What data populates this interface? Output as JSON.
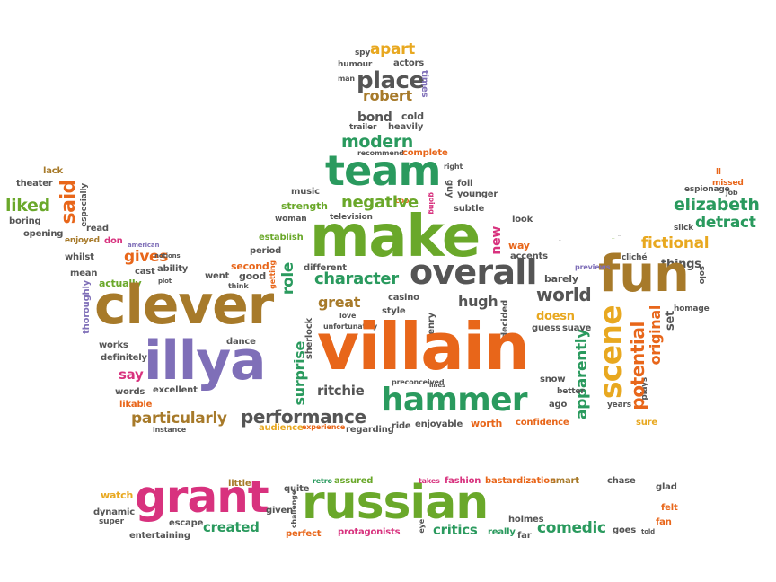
{
  "words": [
    {
      "text": "villain",
      "color": "#e8661a"
    },
    {
      "text": "clever",
      "color": "#a77a2a"
    },
    {
      "text": "make",
      "color": "#6aa82a"
    },
    {
      "text": "illya",
      "color": "#7f6fb8"
    },
    {
      "text": "fun",
      "color": "#a77a2a"
    },
    {
      "text": "action",
      "color": "#6aa82a"
    },
    {
      "text": "russian",
      "color": "#6aa82a"
    },
    {
      "text": "grant",
      "color": "#d8327e"
    },
    {
      "text": "team",
      "color": "#2a9a5e"
    },
    {
      "text": "hammer",
      "color": "#2a9a5e"
    },
    {
      "text": "overall",
      "color": "#555555"
    },
    {
      "text": "scene",
      "color": "#e8a820"
    },
    {
      "text": "performance",
      "color": "#555555"
    },
    {
      "text": "character",
      "color": "#2a9a5e"
    },
    {
      "text": "modern",
      "color": "#2a9a5e"
    },
    {
      "text": "negative",
      "color": "#6aa82a"
    },
    {
      "text": "place",
      "color": "#555555"
    },
    {
      "text": "created",
      "color": "#2a9a5e"
    },
    {
      "text": "elizabeth",
      "color": "#2a9a5e"
    },
    {
      "text": "particularly",
      "color": "#a77a2a"
    },
    {
      "text": "potential",
      "color": "#e8661a"
    },
    {
      "text": "comedic",
      "color": "#2a9a5e"
    },
    {
      "text": "critics",
      "color": "#2a9a5e"
    },
    {
      "text": "apparently",
      "color": "#2a9a5e"
    },
    {
      "text": "robert",
      "color": "#a77a2a"
    },
    {
      "text": "detract",
      "color": "#2a9a5e"
    },
    {
      "text": "fictional",
      "color": "#e8a820"
    },
    {
      "text": "world",
      "color": "#555555"
    },
    {
      "text": "gives",
      "color": "#e8661a"
    },
    {
      "text": "ritchie",
      "color": "#555555"
    },
    {
      "text": "surprise",
      "color": "#2a9a5e"
    },
    {
      "text": "hugh",
      "color": "#555555"
    },
    {
      "text": "great",
      "color": "#a77a2a"
    },
    {
      "text": "said",
      "color": "#e8661a"
    },
    {
      "text": "liked",
      "color": "#6aa82a"
    },
    {
      "text": "apart",
      "color": "#e8a820"
    },
    {
      "text": "role",
      "color": "#2a9a5e"
    },
    {
      "text": "original",
      "color": "#e8661a"
    },
    {
      "text": "doesn",
      "color": "#e8a820"
    },
    {
      "text": "say",
      "color": "#d8327e"
    },
    {
      "text": "protagonists",
      "color": "#d8327e"
    },
    {
      "text": "new",
      "color": "#d8327e"
    },
    {
      "text": "things",
      "color": "#555555"
    },
    {
      "text": "bond",
      "color": "#555555"
    },
    {
      "text": "watch",
      "color": "#e8a820"
    },
    {
      "text": "entertaining",
      "color": "#555555"
    },
    {
      "text": "dynamic",
      "color": "#555555"
    },
    {
      "text": "escape",
      "color": "#555555"
    },
    {
      "text": "given",
      "color": "#555555"
    },
    {
      "text": "little",
      "color": "#a77a2a"
    },
    {
      "text": "quite",
      "color": "#555555"
    },
    {
      "text": "perfect",
      "color": "#e8661a"
    },
    {
      "text": "retro",
      "color": "#2a9a5e"
    },
    {
      "text": "assured",
      "color": "#6aa82a"
    },
    {
      "text": "takes",
      "color": "#d8327e"
    },
    {
      "text": "fashion",
      "color": "#d8327e"
    },
    {
      "text": "bastardization",
      "color": "#e8661a"
    },
    {
      "text": "smart",
      "color": "#a77a2a"
    },
    {
      "text": "chase",
      "color": "#555555"
    },
    {
      "text": "glad",
      "color": "#555555"
    },
    {
      "text": "felt",
      "color": "#e8661a"
    },
    {
      "text": "fan",
      "color": "#e8661a"
    },
    {
      "text": "holmes",
      "color": "#555555"
    },
    {
      "text": "really",
      "color": "#2a9a5e"
    },
    {
      "text": "far",
      "color": "#555555"
    },
    {
      "text": "goes",
      "color": "#555555"
    },
    {
      "text": "told",
      "color": "#555555"
    },
    {
      "text": "eye",
      "color": "#555555"
    },
    {
      "text": "super",
      "color": "#555555"
    },
    {
      "text": "challenge",
      "color": "#555555"
    },
    {
      "text": "confidence",
      "color": "#e8661a"
    },
    {
      "text": "worth",
      "color": "#e8661a"
    },
    {
      "text": "enjoyable",
      "color": "#555555"
    },
    {
      "text": "ride",
      "color": "#555555"
    },
    {
      "text": "regarding",
      "color": "#555555"
    },
    {
      "text": "experience",
      "color": "#e8661a"
    },
    {
      "text": "audience",
      "color": "#e8a820"
    },
    {
      "text": "instance",
      "color": "#555555"
    },
    {
      "text": "likable",
      "color": "#e8661a"
    },
    {
      "text": "excellent",
      "color": "#555555"
    },
    {
      "text": "words",
      "color": "#555555"
    },
    {
      "text": "definitely",
      "color": "#555555"
    },
    {
      "text": "works",
      "color": "#555555"
    },
    {
      "text": "thoroughly",
      "color": "#7f6fb8"
    },
    {
      "text": "mean",
      "color": "#555555"
    },
    {
      "text": "actually",
      "color": "#6aa82a"
    },
    {
      "text": "whilst",
      "color": "#555555"
    },
    {
      "text": "opening",
      "color": "#555555"
    },
    {
      "text": "enjoyed",
      "color": "#a77a2a"
    },
    {
      "text": "boring",
      "color": "#555555"
    },
    {
      "text": "theater",
      "color": "#555555"
    },
    {
      "text": "lack",
      "color": "#a77a2a"
    },
    {
      "text": "especially",
      "color": "#555555"
    },
    {
      "text": "read",
      "color": "#555555"
    },
    {
      "text": "don",
      "color": "#d8327e"
    },
    {
      "text": "cast",
      "color": "#555555"
    },
    {
      "text": "plot",
      "color": "#555555"
    },
    {
      "text": "ability",
      "color": "#555555"
    },
    {
      "text": "american",
      "color": "#7f6fb8"
    },
    {
      "text": "notions",
      "color": "#555555"
    },
    {
      "text": "shows",
      "color": "#555555"
    },
    {
      "text": "went",
      "color": "#555555"
    },
    {
      "text": "think",
      "color": "#555555"
    },
    {
      "text": "good",
      "color": "#555555"
    },
    {
      "text": "second",
      "color": "#e8661a"
    },
    {
      "text": "period",
      "color": "#555555"
    },
    {
      "text": "getting",
      "color": "#e8661a"
    },
    {
      "text": "establish",
      "color": "#6aa82a"
    },
    {
      "text": "woman",
      "color": "#555555"
    },
    {
      "text": "strength",
      "color": "#6aa82a"
    },
    {
      "text": "music",
      "color": "#555555"
    },
    {
      "text": "television",
      "color": "#555555"
    },
    {
      "text": "cool",
      "color": "#e8661a"
    },
    {
      "text": "going",
      "color": "#d8327e"
    },
    {
      "text": "subtle",
      "color": "#555555"
    },
    {
      "text": "younger",
      "color": "#555555"
    },
    {
      "text": "guy",
      "color": "#555555"
    },
    {
      "text": "foil",
      "color": "#555555"
    },
    {
      "text": "right",
      "color": "#555555"
    },
    {
      "text": "complete",
      "color": "#e8661a"
    },
    {
      "text": "recommend",
      "color": "#555555"
    },
    {
      "text": "heavily",
      "color": "#555555"
    },
    {
      "text": "trailer",
      "color": "#555555"
    },
    {
      "text": "cold",
      "color": "#555555"
    },
    {
      "text": "spy",
      "color": "#555555"
    },
    {
      "text": "humour",
      "color": "#555555"
    },
    {
      "text": "actors",
      "color": "#555555"
    },
    {
      "text": "man",
      "color": "#555555"
    },
    {
      "text": "times",
      "color": "#7f6fb8"
    },
    {
      "text": "look",
      "color": "#555555"
    },
    {
      "text": "way",
      "color": "#e8661a"
    },
    {
      "text": "accents",
      "color": "#555555"
    },
    {
      "text": "different",
      "color": "#555555"
    },
    {
      "text": "casino",
      "color": "#555555"
    },
    {
      "text": "style",
      "color": "#555555"
    },
    {
      "text": "decided",
      "color": "#555555"
    },
    {
      "text": "barely",
      "color": "#555555"
    },
    {
      "text": "previews",
      "color": "#7f6fb8"
    },
    {
      "text": "guess",
      "color": "#555555"
    },
    {
      "text": "suave",
      "color": "#555555"
    },
    {
      "text": "henry",
      "color": "#555555"
    },
    {
      "text": "sherlock",
      "color": "#555555"
    },
    {
      "text": "unfortunately",
      "color": "#555555"
    },
    {
      "text": "love",
      "color": "#555555"
    },
    {
      "text": "dance",
      "color": "#555555"
    },
    {
      "text": "preconceived",
      "color": "#555555"
    },
    {
      "text": "lines",
      "color": "#555555"
    },
    {
      "text": "snow",
      "color": "#555555"
    },
    {
      "text": "better",
      "color": "#555555"
    },
    {
      "text": "ago",
      "color": "#555555"
    },
    {
      "text": "alicia",
      "color": "#555555"
    },
    {
      "text": "past",
      "color": "#555555"
    },
    {
      "text": "years",
      "color": "#555555"
    },
    {
      "text": "sure",
      "color": "#e8a820"
    },
    {
      "text": "plays",
      "color": "#555555"
    },
    {
      "text": "set",
      "color": "#555555"
    },
    {
      "text": "homage",
      "color": "#555555"
    },
    {
      "text": "solo",
      "color": "#555555"
    },
    {
      "text": "cliché",
      "color": "#555555"
    },
    {
      "text": "slick",
      "color": "#555555"
    },
    {
      "text": "espionage",
      "color": "#555555"
    },
    {
      "text": "brief",
      "color": "#e8661a"
    },
    {
      "text": "missed",
      "color": "#e8661a"
    },
    {
      "text": "job",
      "color": "#555555"
    },
    {
      "text": "ll",
      "color": "#e8661a"
    }
  ]
}
